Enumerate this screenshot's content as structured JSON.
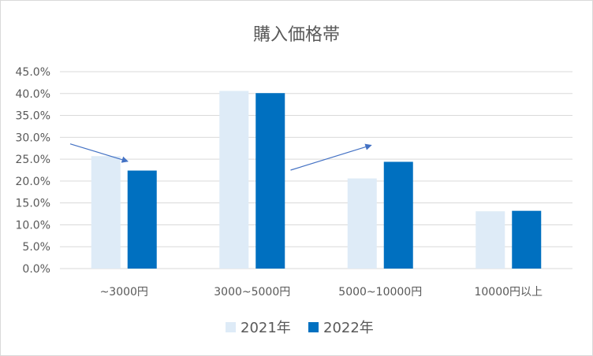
{
  "chart_data": {
    "type": "bar",
    "title": "購入価格帯",
    "xlabel": "",
    "ylabel": "",
    "categories": [
      "~3000円",
      "3000~5000円",
      "5000~10000円",
      "10000円以上"
    ],
    "series": [
      {
        "name": "2021年",
        "color": "#deebf7",
        "values": [
          25.7,
          40.6,
          20.6,
          13.1
        ]
      },
      {
        "name": "2022年",
        "color": "#0070c0",
        "values": [
          22.4,
          40.1,
          24.4,
          13.2
        ]
      }
    ],
    "ylim": [
      0,
      45
    ],
    "yticks": [
      "0.0%",
      "5.0%",
      "10.0%",
      "15.0%",
      "20.0%",
      "25.0%",
      "30.0%",
      "35.0%",
      "40.0%",
      "45.0%"
    ],
    "grid": true,
    "legend_position": "bottom",
    "annotations": [
      {
        "type": "arrow",
        "label": "decrease",
        "color": "#4472c4",
        "from_category": 0,
        "from_value": 28.5,
        "to_category": 0.45,
        "to_value": 24.5
      },
      {
        "type": "arrow",
        "label": "increase",
        "color": "#4472c4",
        "from_category": 1.72,
        "from_value": 22.5,
        "to_category": 2.35,
        "to_value": 28.2
      }
    ]
  }
}
